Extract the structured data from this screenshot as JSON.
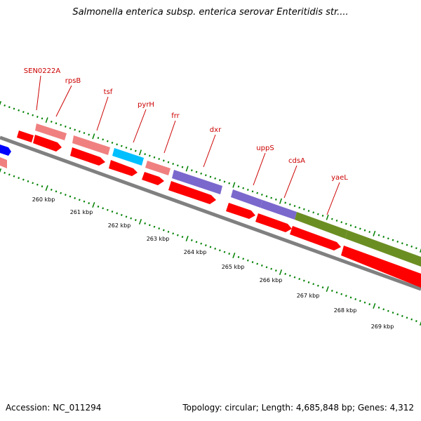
{
  "title": "Salmonella enterica subsp. enterica serovar Enteritidis str....",
  "footer": {
    "accession": "Accession: NC_011294",
    "summary": "Topology: circular; Length: 4,685,848 bp; Genes: 4,312"
  },
  "colors": {
    "backbone": "#808080",
    "tick": "#008000",
    "gene_label": "#cc0000",
    "forward_strand": "#ff0000",
    "blue_gene": "#0000ff",
    "pink_gene": "#f08080",
    "cyan_gene": "#00bfff",
    "purple_gene": "#7b68cc",
    "olive_gene": "#6b8e23"
  },
  "gene_labels": [
    "SEN0222A",
    "rpsB",
    "tsf",
    "pyrH",
    "frr",
    "dxr",
    "uppS",
    "cdsA",
    "yaeL"
  ],
  "kbp_labels": [
    "260 kbp",
    "261 kbp",
    "262 kbp",
    "263 kbp",
    "264 kbp",
    "265 kbp",
    "266 kbp",
    "267 kbp",
    "268 kbp",
    "269 kbp"
  ]
}
